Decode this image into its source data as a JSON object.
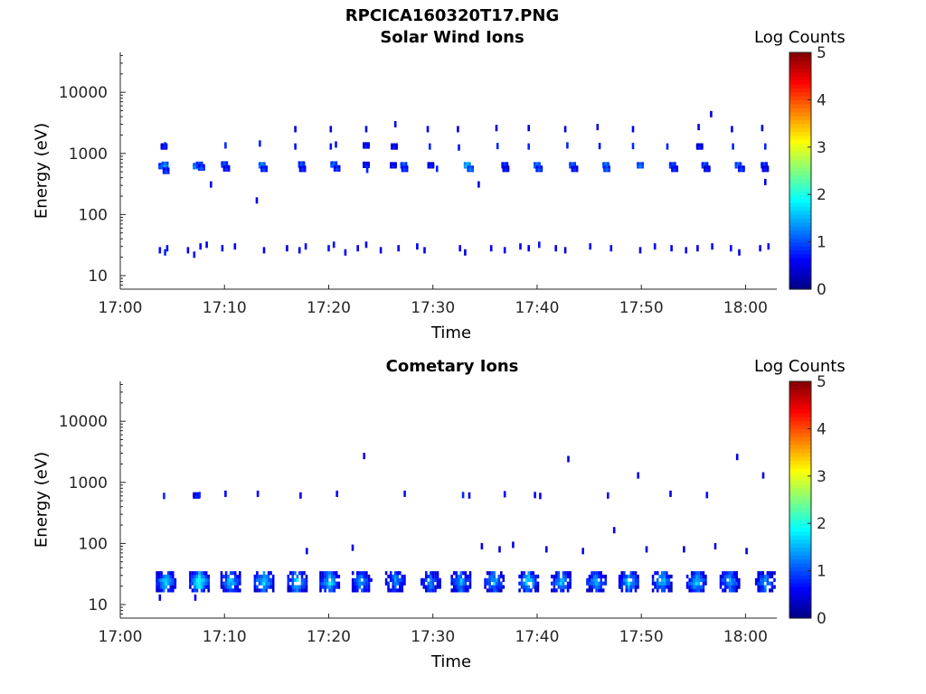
{
  "figure_title": "RPCICA160320T17.PNG",
  "colormap_stops": [
    "#00007f",
    "#0000ff",
    "#007fff",
    "#00ffff",
    "#7fff7f",
    "#ffff00",
    "#ff7f00",
    "#ff0000",
    "#7f0000"
  ],
  "chart_data": [
    {
      "type": "heatmap",
      "title": "Solar Wind Ions",
      "xlabel": "Time",
      "ylabel": "Energy (eV)",
      "x_ticks": [
        "17:00",
        "17:10",
        "17:20",
        "17:30",
        "17:40",
        "17:50",
        "18:00"
      ],
      "y_ticks": [
        "10",
        "100",
        "1000",
        "10000"
      ],
      "y_scale": "log",
      "ylim": [
        6,
        45000
      ],
      "xlim_minutes": [
        0,
        63
      ],
      "colorbar": {
        "label": "Log Counts",
        "ticks": [
          "0",
          "1",
          "2",
          "3",
          "4",
          "5"
        ],
        "range": [
          0,
          5
        ]
      },
      "cells": [
        [
          4.2,
          1300,
          0.9
        ],
        [
          4.3,
          1350,
          0.8
        ],
        [
          4.0,
          620,
          1.3
        ],
        [
          4.3,
          650,
          1.5
        ],
        [
          4.4,
          520,
          1.1
        ],
        [
          7.3,
          620,
          1.6
        ],
        [
          7.6,
          650,
          1.3
        ],
        [
          7.8,
          590,
          1.2
        ],
        [
          10.0,
          660,
          1.3
        ],
        [
          10.2,
          570,
          1.0
        ],
        [
          10.1,
          1350,
          0.8
        ],
        [
          13.6,
          640,
          1.6
        ],
        [
          13.8,
          560,
          1.1
        ],
        [
          13.4,
          1450,
          0.8
        ],
        [
          16.8,
          1300,
          0.7
        ],
        [
          17.4,
          660,
          1.3
        ],
        [
          17.5,
          560,
          1.0
        ],
        [
          20.5,
          660,
          1.4
        ],
        [
          20.8,
          570,
          1.1
        ],
        [
          20.2,
          1300,
          0.7
        ],
        [
          20.7,
          1400,
          0.7
        ],
        [
          23.6,
          650,
          0.9
        ],
        [
          23.7,
          540,
          0.8
        ],
        [
          23.6,
          1350,
          0.9
        ],
        [
          26.2,
          640,
          0.9
        ],
        [
          26.3,
          1300,
          0.9
        ],
        [
          27.2,
          640,
          1.4
        ],
        [
          27.3,
          560,
          1.1
        ],
        [
          29.7,
          1300,
          0.8
        ],
        [
          29.8,
          640,
          0.9
        ],
        [
          30.4,
          560,
          0.8
        ],
        [
          32.5,
          1250,
          0.7
        ],
        [
          33.3,
          640,
          1.8
        ],
        [
          33.6,
          560,
          1.4
        ],
        [
          36.2,
          1320,
          0.8
        ],
        [
          36.9,
          640,
          1.2
        ],
        [
          37.0,
          560,
          0.9
        ],
        [
          39.2,
          1300,
          0.8
        ],
        [
          40.0,
          640,
          1.5
        ],
        [
          40.2,
          560,
          1.2
        ],
        [
          42.9,
          1350,
          0.8
        ],
        [
          43.4,
          640,
          1.4
        ],
        [
          43.6,
          560,
          1.0
        ],
        [
          46.0,
          1320,
          0.7
        ],
        [
          46.6,
          640,
          1.5
        ],
        [
          46.7,
          560,
          1.3
        ],
        [
          49.2,
          1320,
          0.8
        ],
        [
          49.9,
          640,
          1.4
        ],
        [
          52.5,
          1300,
          0.8
        ],
        [
          53.0,
          640,
          1.3
        ],
        [
          53.2,
          560,
          1.0
        ],
        [
          55.6,
          1300,
          0.9
        ],
        [
          56.1,
          640,
          1.3
        ],
        [
          56.3,
          560,
          0.9
        ],
        [
          58.8,
          1300,
          0.8
        ],
        [
          59.3,
          640,
          1.4
        ],
        [
          59.6,
          560,
          1.1
        ],
        [
          61.9,
          1300,
          0.8
        ],
        [
          61.8,
          640,
          1.2
        ],
        [
          61.9,
          560,
          0.9
        ],
        [
          16.8,
          2500,
          0.5
        ],
        [
          20.2,
          2500,
          0.5
        ],
        [
          23.6,
          2500,
          0.5
        ],
        [
          26.4,
          3000,
          0.5
        ],
        [
          29.5,
          2500,
          0.5
        ],
        [
          32.4,
          2500,
          0.5
        ],
        [
          36.1,
          2600,
          0.5
        ],
        [
          39.2,
          2600,
          0.5
        ],
        [
          42.7,
          2500,
          0.5
        ],
        [
          45.8,
          2700,
          0.5
        ],
        [
          49.2,
          2500,
          0.5
        ],
        [
          55.5,
          2700,
          0.5
        ],
        [
          56.7,
          4400,
          0.5
        ],
        [
          58.7,
          2500,
          0.5
        ],
        [
          61.6,
          2600,
          0.5
        ],
        [
          8.7,
          310,
          0.5
        ],
        [
          13.1,
          170,
          0.5
        ],
        [
          34.4,
          310,
          0.5
        ],
        [
          61.9,
          340,
          0.5
        ],
        [
          3.8,
          26,
          0.7
        ],
        [
          4.3,
          24,
          0.8
        ],
        [
          4.5,
          28,
          0.7
        ],
        [
          6.5,
          26,
          0.6
        ],
        [
          7.1,
          22,
          0.7
        ],
        [
          7.7,
          30,
          0.6
        ],
        [
          8.3,
          32,
          0.5
        ],
        [
          9.8,
          28,
          0.6
        ],
        [
          11.0,
          30,
          0.6
        ],
        [
          13.8,
          26,
          0.6
        ],
        [
          16.0,
          28,
          0.5
        ],
        [
          17.2,
          26,
          0.6
        ],
        [
          17.8,
          30,
          0.6
        ],
        [
          20.0,
          28,
          0.7
        ],
        [
          20.5,
          32,
          0.7
        ],
        [
          21.6,
          24,
          0.6
        ],
        [
          22.8,
          28,
          0.6
        ],
        [
          23.6,
          32,
          0.5
        ],
        [
          25.0,
          26,
          0.6
        ],
        [
          26.7,
          28,
          0.5
        ],
        [
          28.5,
          30,
          0.6
        ],
        [
          29.2,
          26,
          0.6
        ],
        [
          32.6,
          28,
          0.6
        ],
        [
          33.1,
          24,
          0.5
        ],
        [
          35.6,
          28,
          0.6
        ],
        [
          36.9,
          26,
          0.6
        ],
        [
          38.4,
          30,
          0.6
        ],
        [
          39.2,
          28,
          0.5
        ],
        [
          40.2,
          32,
          0.7
        ],
        [
          41.8,
          28,
          0.6
        ],
        [
          42.7,
          26,
          0.5
        ],
        [
          45.1,
          30,
          0.6
        ],
        [
          47.1,
          28,
          0.6
        ],
        [
          49.9,
          26,
          0.5
        ],
        [
          51.3,
          30,
          0.6
        ],
        [
          52.9,
          28,
          0.6
        ],
        [
          54.3,
          26,
          0.6
        ],
        [
          55.4,
          28,
          0.5
        ],
        [
          56.8,
          30,
          0.6
        ],
        [
          58.6,
          28,
          0.6
        ],
        [
          59.4,
          24,
          0.5
        ],
        [
          61.4,
          28,
          0.6
        ],
        [
          62.2,
          30,
          0.6
        ]
      ]
    },
    {
      "type": "heatmap",
      "title": "Cometary Ions",
      "xlabel": "Time",
      "ylabel": "Energy (eV)",
      "x_ticks": [
        "17:00",
        "17:10",
        "17:20",
        "17:30",
        "17:40",
        "17:50",
        "18:00"
      ],
      "y_ticks": [
        "10",
        "100",
        "1000",
        "10000"
      ],
      "y_scale": "log",
      "ylim": [
        6,
        45000
      ],
      "xlim_minutes": [
        0,
        63
      ],
      "colorbar": {
        "label": "Log Counts",
        "ticks": [
          "0",
          "1",
          "2",
          "3",
          "4",
          "5"
        ],
        "range": [
          0,
          5
        ]
      },
      "cells": [
        [
          4.2,
          600,
          0.8
        ],
        [
          7.3,
          610,
          0.9
        ],
        [
          7.6,
          620,
          0.8
        ],
        [
          10.1,
          650,
          0.6
        ],
        [
          13.2,
          650,
          0.6
        ],
        [
          17.3,
          610,
          0.6
        ],
        [
          20.8,
          650,
          0.6
        ],
        [
          27.3,
          650,
          0.7
        ],
        [
          32.9,
          620,
          0.8
        ],
        [
          33.5,
          610,
          0.6
        ],
        [
          36.9,
          640,
          0.6
        ],
        [
          39.8,
          620,
          0.6
        ],
        [
          40.3,
          600,
          0.6
        ],
        [
          46.8,
          610,
          0.7
        ],
        [
          49.7,
          1300,
          0.5
        ],
        [
          52.8,
          650,
          0.5
        ],
        [
          56.3,
          620,
          0.6
        ],
        [
          59.2,
          2600,
          0.5
        ],
        [
          61.7,
          1300,
          0.5
        ],
        [
          23.4,
          2700,
          0.5
        ],
        [
          43.0,
          2400,
          0.5
        ],
        [
          47.4,
          165,
          0.5
        ],
        [
          17.9,
          75,
          0.5
        ],
        [
          22.3,
          85,
          0.5
        ],
        [
          34.7,
          90,
          0.5
        ],
        [
          36.4,
          80,
          0.5
        ],
        [
          37.7,
          95,
          0.5
        ],
        [
          40.9,
          80,
          0.5
        ],
        [
          44.4,
          75,
          0.5
        ],
        [
          50.5,
          80,
          0.5
        ],
        [
          54.1,
          80,
          0.5
        ],
        [
          57.1,
          90,
          0.5
        ],
        [
          60.1,
          75,
          0.5
        ],
        [
          3.8,
          13,
          0.6
        ],
        [
          7.2,
          13,
          0.6
        ]
      ],
      "clusters": [
        [
          4.4,
          1.8
        ],
        [
          7.6,
          2.2
        ],
        [
          10.6,
          1.7
        ],
        [
          13.8,
          1.9
        ],
        [
          17.0,
          1.8
        ],
        [
          20.1,
          1.8
        ],
        [
          23.2,
          1.5
        ],
        [
          26.4,
          1.4
        ],
        [
          29.8,
          1.3
        ],
        [
          32.7,
          1.6
        ],
        [
          35.9,
          1.6
        ],
        [
          39.2,
          1.9
        ],
        [
          42.3,
          1.6
        ],
        [
          45.7,
          1.5
        ],
        [
          48.8,
          1.8
        ],
        [
          52.0,
          1.7
        ],
        [
          55.3,
          1.8
        ],
        [
          58.5,
          1.6
        ],
        [
          61.9,
          1.5
        ]
      ]
    }
  ]
}
